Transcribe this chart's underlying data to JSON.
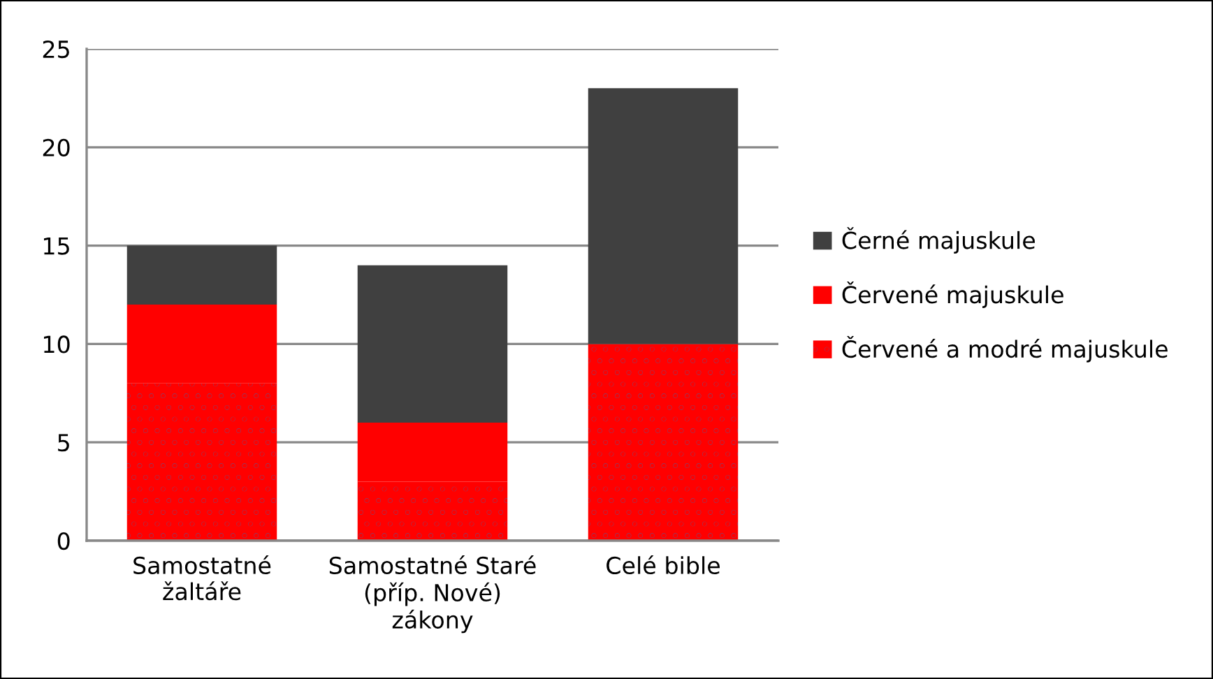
{
  "chart_data": {
    "type": "bar",
    "stacked": true,
    "categories": [
      "Samostatné\nžaltáře",
      "Samostatné Staré\n(příp. Nové)\nzákony",
      "Celé bible"
    ],
    "series": [
      {
        "name": "Červené a modré majuskule",
        "color": "#ff0000",
        "values": [
          8,
          3,
          10
        ]
      },
      {
        "name": "Červené majuskule",
        "color": "#ff0000",
        "values": [
          4,
          3,
          0
        ]
      },
      {
        "name": "Černé majuskule",
        "color": "#404040",
        "values": [
          3,
          8,
          13
        ]
      }
    ],
    "ylim": [
      0,
      25
    ],
    "yticks": [
      0,
      5,
      10,
      15,
      20,
      25
    ],
    "grid": "y",
    "legend": "right"
  }
}
